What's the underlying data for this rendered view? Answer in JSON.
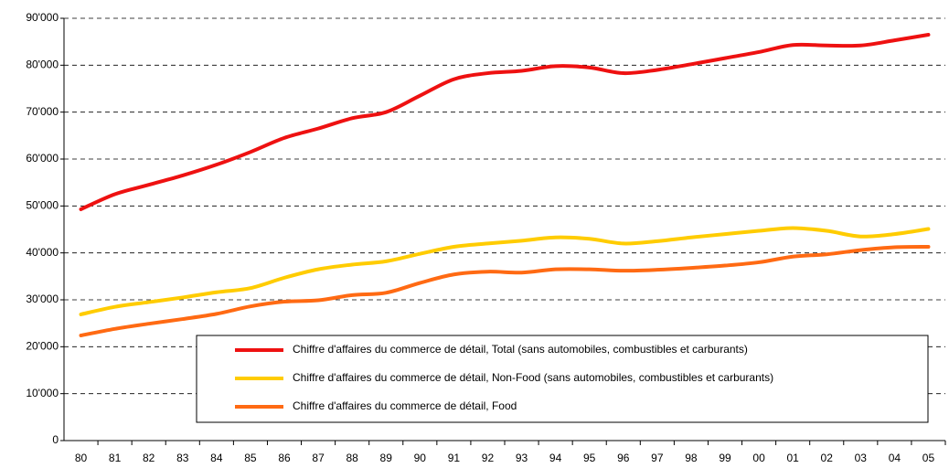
{
  "chart_data": {
    "type": "line",
    "categories": [
      "80",
      "81",
      "82",
      "83",
      "84",
      "85",
      "86",
      "87",
      "88",
      "89",
      "90",
      "91",
      "92",
      "93",
      "94",
      "95",
      "96",
      "97",
      "98",
      "99",
      "00",
      "01",
      "02",
      "03",
      "04",
      "05"
    ],
    "series": [
      {
        "name": "Chiffre d'affaires du commerce de détail, Total (sans automobiles, combustibles et carburants)",
        "color": "#ee1111",
        "values": [
          49300,
          52500,
          54500,
          56500,
          58800,
          61500,
          64500,
          66500,
          68700,
          70000,
          73500,
          77000,
          78300,
          78800,
          79800,
          79500,
          78300,
          79000,
          80200,
          81500,
          82800,
          84300,
          84200,
          84200,
          85300,
          86500
        ]
      },
      {
        "name": "Chiffre d'affaires du commerce de détail, Non-Food (sans automobiles, combustibles et carburants)",
        "color": "#ffcc00",
        "values": [
          26900,
          28500,
          29500,
          30500,
          31600,
          32500,
          34700,
          36500,
          37500,
          38200,
          39800,
          41300,
          42000,
          42600,
          43300,
          43000,
          42000,
          42500,
          43300,
          44000,
          44700,
          45300,
          44700,
          43500,
          44000,
          45100
        ]
      },
      {
        "name": "Chiffre d'affaires du commerce de détail, Food",
        "color": "#ff6a13",
        "values": [
          22400,
          23800,
          24900,
          25900,
          27000,
          28600,
          29600,
          29900,
          31000,
          31500,
          33600,
          35400,
          36000,
          35800,
          36500,
          36500,
          36200,
          36400,
          36800,
          37300,
          38000,
          39200,
          39700,
          40600,
          41200,
          41300
        ]
      }
    ],
    "ylim": [
      0,
      90000
    ],
    "yticks": [
      0,
      {
        "value": 10000,
        "label": "10'000"
      },
      {
        "value": 20000,
        "label": "20'000"
      },
      {
        "value": 30000,
        "label": "30'000"
      },
      {
        "value": 40000,
        "label": "40'000"
      },
      {
        "value": 50000,
        "label": "50'000"
      },
      {
        "value": 60000,
        "label": "60'000"
      },
      {
        "value": 70000,
        "label": "70'000"
      },
      {
        "value": 80000,
        "label": "80'000"
      },
      {
        "value": 90000,
        "label": "90'000"
      }
    ],
    "grid": true,
    "legend": "lower right"
  }
}
